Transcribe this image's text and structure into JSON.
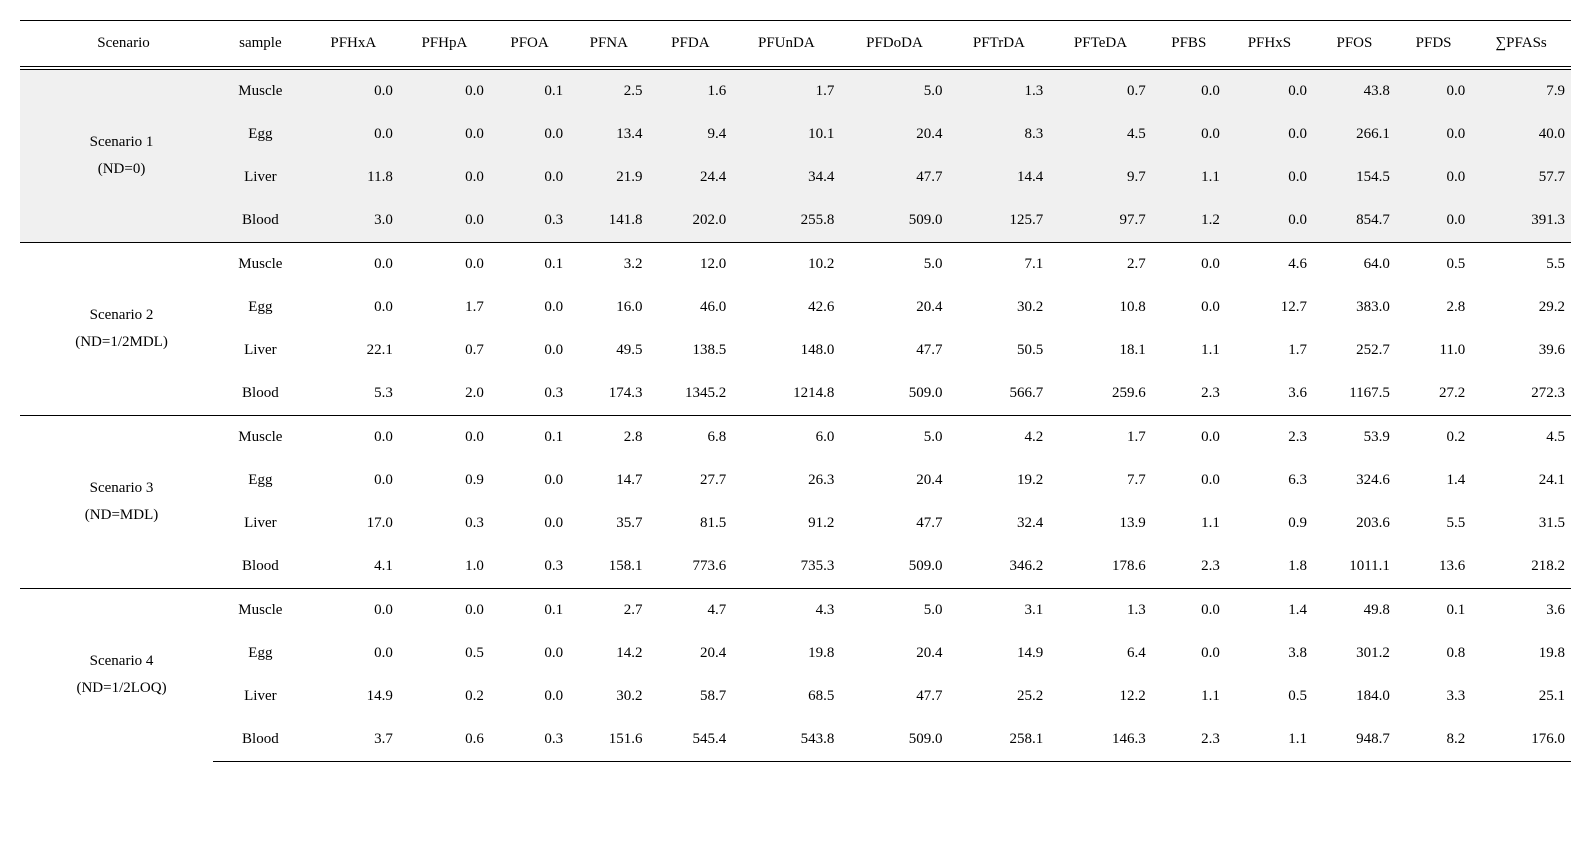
{
  "table": {
    "type": "table",
    "columns": [
      "Scenario",
      "sample",
      "PFHxA",
      "PFHpA",
      "PFOA",
      "PFNA",
      "PFDA",
      "PFUnDA",
      "PFDoDA",
      "PFTrDA",
      "PFTeDA",
      "PFBS",
      "PFHxS",
      "PFOS",
      "PFDS",
      "∑PFASs"
    ],
    "groups": [
      {
        "scenario_label": "Scenario 1",
        "scenario_sub": "(ND=0)",
        "highlight": true,
        "rows": [
          {
            "sample": "Muscle",
            "values": [
              "0.0",
              "0.0",
              "0.1",
              "2.5",
              "1.6",
              "1.7",
              "5.0",
              "1.3",
              "0.7",
              "0.0",
              "0.0",
              "43.8",
              "0.0",
              "7.9"
            ]
          },
          {
            "sample": "Egg",
            "values": [
              "0.0",
              "0.0",
              "0.0",
              "13.4",
              "9.4",
              "10.1",
              "20.4",
              "8.3",
              "4.5",
              "0.0",
              "0.0",
              "266.1",
              "0.0",
              "40.0"
            ]
          },
          {
            "sample": "Liver",
            "values": [
              "11.8",
              "0.0",
              "0.0",
              "21.9",
              "24.4",
              "34.4",
              "47.7",
              "14.4",
              "9.7",
              "1.1",
              "0.0",
              "154.5",
              "0.0",
              "57.7"
            ]
          },
          {
            "sample": "Blood",
            "values": [
              "3.0",
              "0.0",
              "0.3",
              "141.8",
              "202.0",
              "255.8",
              "509.0",
              "125.7",
              "97.7",
              "1.2",
              "0.0",
              "854.7",
              "0.0",
              "391.3"
            ]
          }
        ]
      },
      {
        "scenario_label": "Scenario 2",
        "scenario_sub": "(ND=1/2MDL)",
        "highlight": false,
        "rows": [
          {
            "sample": "Muscle",
            "values": [
              "0.0",
              "0.0",
              "0.1",
              "3.2",
              "12.0",
              "10.2",
              "5.0",
              "7.1",
              "2.7",
              "0.0",
              "4.6",
              "64.0",
              "0.5",
              "5.5"
            ]
          },
          {
            "sample": "Egg",
            "values": [
              "0.0",
              "1.7",
              "0.0",
              "16.0",
              "46.0",
              "42.6",
              "20.4",
              "30.2",
              "10.8",
              "0.0",
              "12.7",
              "383.0",
              "2.8",
              "29.2"
            ]
          },
          {
            "sample": "Liver",
            "values": [
              "22.1",
              "0.7",
              "0.0",
              "49.5",
              "138.5",
              "148.0",
              "47.7",
              "50.5",
              "18.1",
              "1.1",
              "1.7",
              "252.7",
              "11.0",
              "39.6"
            ]
          },
          {
            "sample": "Blood",
            "values": [
              "5.3",
              "2.0",
              "0.3",
              "174.3",
              "1345.2",
              "1214.8",
              "509.0",
              "566.7",
              "259.6",
              "2.3",
              "3.6",
              "1167.5",
              "27.2",
              "272.3"
            ]
          }
        ]
      },
      {
        "scenario_label": "Scenario 3",
        "scenario_sub": "(ND=MDL)",
        "highlight": false,
        "rows": [
          {
            "sample": "Muscle",
            "values": [
              "0.0",
              "0.0",
              "0.1",
              "2.8",
              "6.8",
              "6.0",
              "5.0",
              "4.2",
              "1.7",
              "0.0",
              "2.3",
              "53.9",
              "0.2",
              "4.5"
            ]
          },
          {
            "sample": "Egg",
            "values": [
              "0.0",
              "0.9",
              "0.0",
              "14.7",
              "27.7",
              "26.3",
              "20.4",
              "19.2",
              "7.7",
              "0.0",
              "6.3",
              "324.6",
              "1.4",
              "24.1"
            ]
          },
          {
            "sample": "Liver",
            "values": [
              "17.0",
              "0.3",
              "0.0",
              "35.7",
              "81.5",
              "91.2",
              "47.7",
              "32.4",
              "13.9",
              "1.1",
              "0.9",
              "203.6",
              "5.5",
              "31.5"
            ]
          },
          {
            "sample": "Blood",
            "values": [
              "4.1",
              "1.0",
              "0.3",
              "158.1",
              "773.6",
              "735.3",
              "509.0",
              "346.2",
              "178.6",
              "2.3",
              "1.8",
              "1011.1",
              "13.6",
              "218.2"
            ]
          }
        ]
      },
      {
        "scenario_label": "Scenario 4",
        "scenario_sub": "(ND=1/2LOQ)",
        "highlight": false,
        "rows": [
          {
            "sample": "Muscle",
            "values": [
              "0.0",
              "0.0",
              "0.1",
              "2.7",
              "4.7",
              "4.3",
              "5.0",
              "3.1",
              "1.3",
              "0.0",
              "1.4",
              "49.8",
              "0.1",
              "3.6"
            ]
          },
          {
            "sample": "Egg",
            "values": [
              "0.0",
              "0.5",
              "0.0",
              "14.2",
              "20.4",
              "19.8",
              "20.4",
              "14.9",
              "6.4",
              "0.0",
              "3.8",
              "301.2",
              "0.8",
              "19.8"
            ]
          },
          {
            "sample": "Liver",
            "values": [
              "14.9",
              "0.2",
              "0.0",
              "30.2",
              "58.7",
              "68.5",
              "47.7",
              "25.2",
              "12.2",
              "1.1",
              "0.5",
              "184.0",
              "3.3",
              "25.1"
            ]
          },
          {
            "sample": "Blood",
            "values": [
              "3.7",
              "0.6",
              "0.3",
              "151.6",
              "545.4",
              "543.8",
              "509.0",
              "258.1",
              "146.3",
              "2.3",
              "1.1",
              "948.7",
              "8.2",
              "176.0"
            ]
          }
        ]
      }
    ],
    "styling": {
      "background_color": "#ffffff",
      "highlight_background": "#f0f0f0",
      "text_color": "#000000",
      "border_color": "#000000",
      "font_family": "Times New Roman",
      "font_size": 15,
      "header_border_top_width": 1.5,
      "header_border_bottom_width": 1,
      "group_border_width": 1,
      "bottom_border_width": 1.5,
      "cell_padding_v": 13,
      "cell_padding_h": 6
    }
  }
}
